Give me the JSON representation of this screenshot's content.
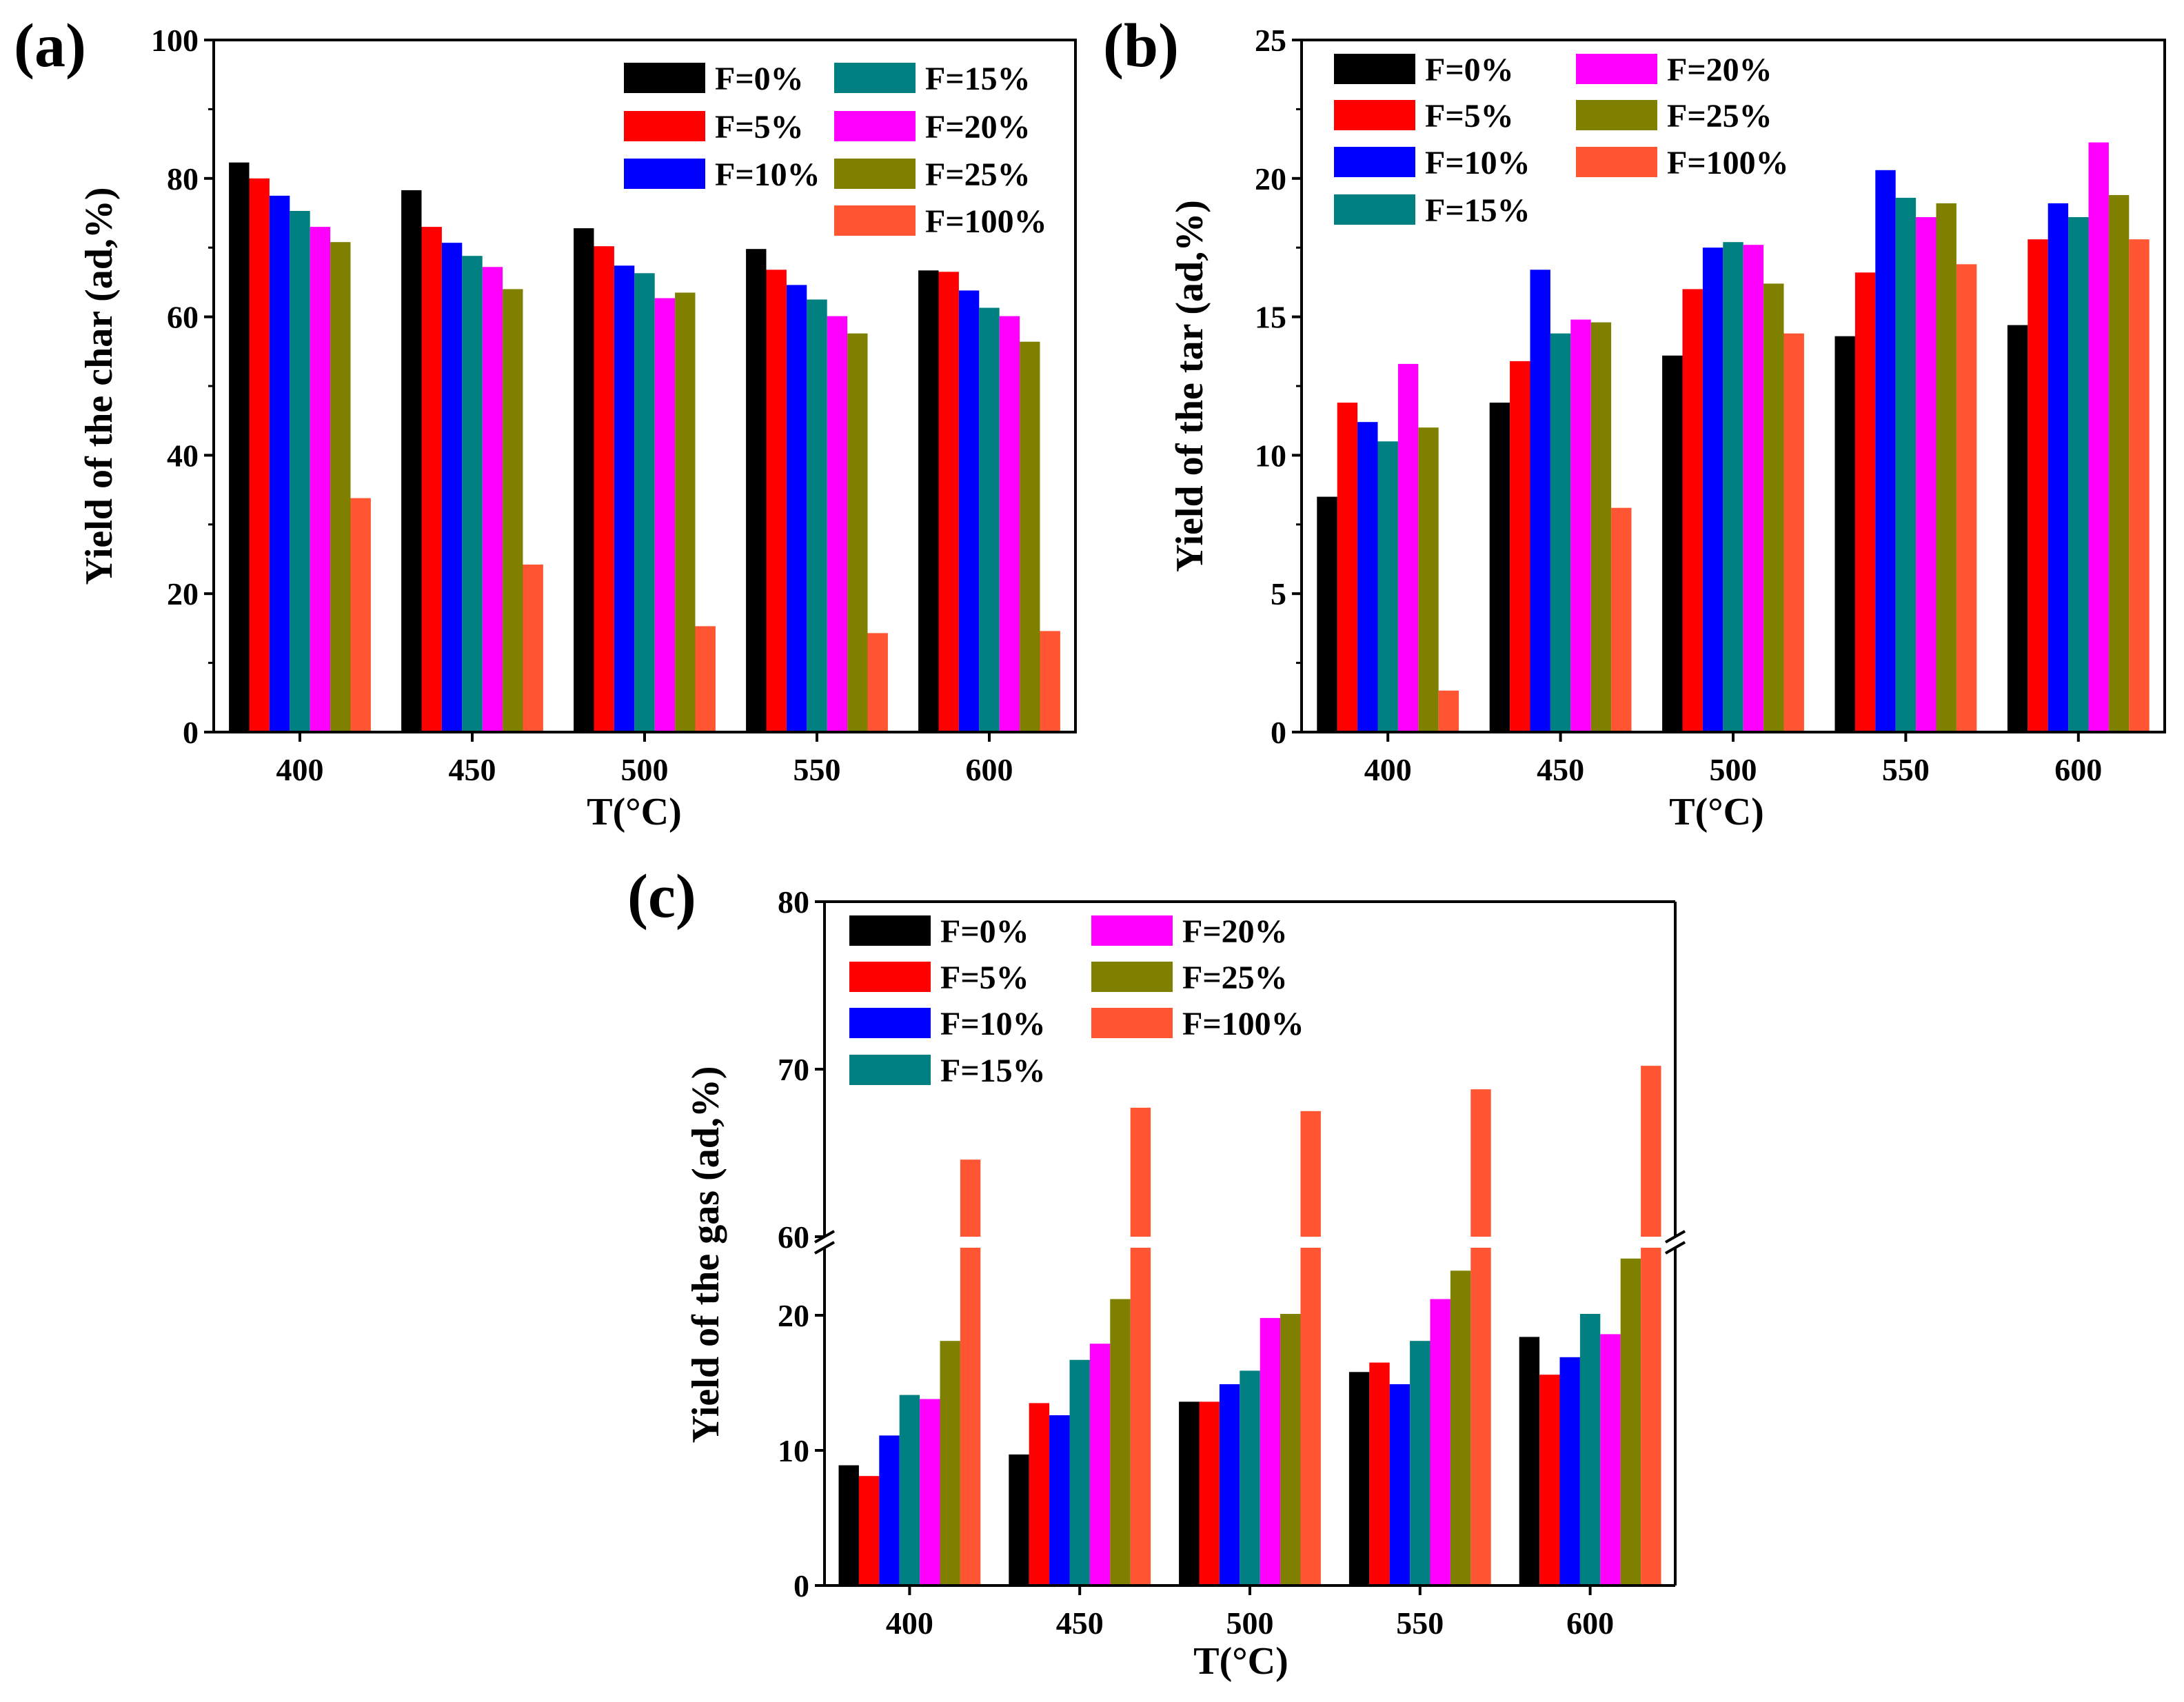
{
  "chart_data": [
    {
      "panel": "(a)",
      "type": "bar",
      "xlabel": "T(°C)",
      "ylabel": "Yield of the char (ad,%)",
      "ylim": [
        0,
        100
      ],
      "yticks": [
        0,
        20,
        40,
        60,
        80,
        100
      ],
      "categories": [
        "400",
        "450",
        "500",
        "550",
        "600"
      ],
      "series": [
        {
          "name": "F=0%",
          "color": "#000000",
          "values": [
            82.3,
            78.3,
            72.8,
            69.8,
            66.7
          ]
        },
        {
          "name": "F=5%",
          "color": "#ff0000",
          "values": [
            80.0,
            73.0,
            70.2,
            66.8,
            66.5
          ]
        },
        {
          "name": "F=10%",
          "color": "#0000ff",
          "values": [
            77.5,
            70.7,
            67.4,
            64.6,
            63.8
          ]
        },
        {
          "name": "F=15%",
          "color": "#008080",
          "values": [
            75.3,
            68.8,
            66.3,
            62.5,
            61.3
          ]
        },
        {
          "name": "F=20%",
          "color": "#ff00ff",
          "values": [
            73.0,
            67.2,
            62.7,
            60.1,
            60.1
          ]
        },
        {
          "name": "F=25%",
          "color": "#808000",
          "values": [
            70.8,
            64.0,
            63.5,
            57.6,
            56.4
          ]
        },
        {
          "name": "F=100%",
          "color": "#ff5533",
          "values": [
            33.8,
            24.2,
            15.3,
            14.3,
            14.6
          ]
        }
      ],
      "legend_layout": "two-column-top-right"
    },
    {
      "panel": "(b)",
      "type": "bar",
      "xlabel": "T(°C)",
      "ylabel": "Yield of the tar (ad,%)",
      "ylim": [
        0,
        25
      ],
      "yticks": [
        0,
        5,
        10,
        15,
        20,
        25
      ],
      "categories": [
        "400",
        "450",
        "500",
        "550",
        "600"
      ],
      "series": [
        {
          "name": "F=0%",
          "color": "#000000",
          "values": [
            8.5,
            11.9,
            13.6,
            14.3,
            14.7
          ]
        },
        {
          "name": "F=5%",
          "color": "#ff0000",
          "values": [
            11.9,
            13.4,
            16.0,
            16.6,
            17.8
          ]
        },
        {
          "name": "F=10%",
          "color": "#0000ff",
          "values": [
            11.2,
            16.7,
            17.5,
            20.3,
            19.1
          ]
        },
        {
          "name": "F=15%",
          "color": "#008080",
          "values": [
            10.5,
            14.4,
            17.7,
            19.3,
            18.6
          ]
        },
        {
          "name": "F=20%",
          "color": "#ff00ff",
          "values": [
            13.3,
            14.9,
            17.6,
            18.6,
            21.3
          ]
        },
        {
          "name": "F=25%",
          "color": "#808000",
          "values": [
            11.0,
            14.8,
            16.2,
            19.1,
            19.4
          ]
        },
        {
          "name": "F=100%",
          "color": "#ff5533",
          "values": [
            1.5,
            8.1,
            14.4,
            16.9,
            17.8
          ]
        }
      ],
      "legend_layout": "two-column-top-left"
    },
    {
      "panel": "(c)",
      "type": "bar",
      "xlabel": "T(°C)",
      "ylabel": "Yield of the gas (ad,%)",
      "broken_axis": {
        "lower_range": [
          0,
          25
        ],
        "upper_range": [
          60,
          80
        ]
      },
      "yticks": [
        0,
        10,
        20,
        60,
        70,
        80
      ],
      "categories": [
        "400",
        "450",
        "500",
        "550",
        "600"
      ],
      "series": [
        {
          "name": "F=0%",
          "color": "#000000",
          "values": [
            8.9,
            9.7,
            13.6,
            15.8,
            18.4
          ]
        },
        {
          "name": "F=5%",
          "color": "#ff0000",
          "values": [
            8.1,
            13.5,
            13.6,
            16.5,
            15.6
          ]
        },
        {
          "name": "F=10%",
          "color": "#0000ff",
          "values": [
            11.1,
            12.6,
            14.9,
            14.9,
            16.9
          ]
        },
        {
          "name": "F=15%",
          "color": "#008080",
          "values": [
            14.1,
            16.7,
            15.9,
            18.1,
            20.1
          ]
        },
        {
          "name": "F=20%",
          "color": "#ff00ff",
          "values": [
            13.8,
            17.9,
            19.8,
            21.2,
            18.6
          ]
        },
        {
          "name": "F=25%",
          "color": "#808000",
          "values": [
            18.1,
            21.2,
            20.1,
            23.3,
            24.2
          ]
        },
        {
          "name": "F=100%",
          "color": "#ff5533",
          "values": [
            64.6,
            67.7,
            67.5,
            68.8,
            70.2
          ]
        }
      ],
      "legend_layout": "two-column-top-left"
    }
  ]
}
